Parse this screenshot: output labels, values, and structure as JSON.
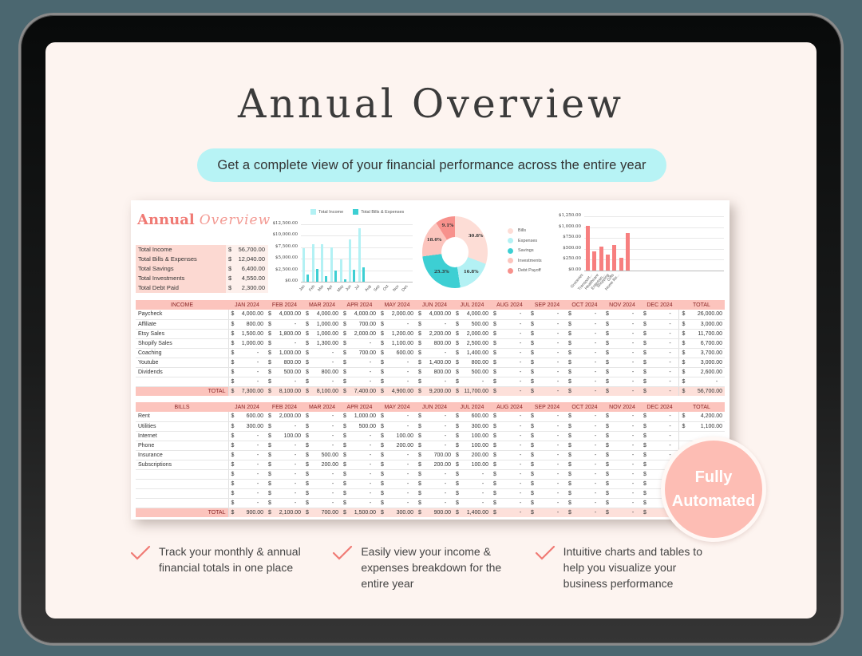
{
  "page": {
    "title": "Annual Overview",
    "subtitle": "Get a complete view of your financial performance across the entire year",
    "badge": {
      "line1": "Fully",
      "line2": "Automated"
    },
    "features": [
      "Track your monthly & annual financial totals in one place",
      "Easily view your income & expenses breakdown for the entire year",
      "Intuitive charts and tables to help you visualize your business performance"
    ]
  },
  "colors": {
    "background": "#4b6770",
    "screen": "#fdf4f0",
    "pill": "#b7f3f5",
    "accent_pink": "#f07a74",
    "header_pink": "#fcc4bd",
    "income_cyan": "#b3f1f4",
    "bills_teal": "#3dcfd3",
    "category_bar": "#f77f7f"
  },
  "sheet": {
    "brand_bold": "Annual",
    "brand_script": "Overview",
    "summary": [
      {
        "label": "Total Income",
        "currency": "$",
        "value": "56,700.00"
      },
      {
        "label": "Total Bills & Expenses",
        "currency": "$",
        "value": "12,040.00"
      },
      {
        "label": "Total Savings",
        "currency": "$",
        "value": "6,400.00"
      },
      {
        "label": "Total Investments",
        "currency": "$",
        "value": "4,550.00"
      },
      {
        "label": "Total Debt Paid",
        "currency": "$",
        "value": "2,300.00"
      }
    ],
    "months": [
      "JAN 2024",
      "FEB 2024",
      "MAR 2024",
      "APR 2024",
      "MAY 2024",
      "JUN 2024",
      "JUL 2024",
      "AUG 2024",
      "SEP 2024",
      "OCT 2024",
      "NOV 2024",
      "DEC 2024"
    ],
    "total_header": "TOTAL",
    "income": {
      "header": "INCOME",
      "rows": [
        {
          "label": "Paycheck",
          "values": [
            "4,000.00",
            "4,000.00",
            "4,000.00",
            "4,000.00",
            "2,000.00",
            "4,000.00",
            "4,000.00",
            "-",
            "-",
            "-",
            "-",
            "-"
          ],
          "total": "26,000.00"
        },
        {
          "label": "Affiliate",
          "values": [
            "800.00",
            "-",
            "1,000.00",
            "700.00",
            "-",
            "-",
            "500.00",
            "-",
            "-",
            "-",
            "-",
            "-"
          ],
          "total": "3,000.00"
        },
        {
          "label": "Etsy Sales",
          "values": [
            "1,500.00",
            "1,800.00",
            "1,000.00",
            "2,000.00",
            "1,200.00",
            "2,200.00",
            "2,000.00",
            "-",
            "-",
            "-",
            "-",
            "-"
          ],
          "total": "11,700.00"
        },
        {
          "label": "Shopify Sales",
          "values": [
            "1,000.00",
            "-",
            "1,300.00",
            "-",
            "1,100.00",
            "800.00",
            "2,500.00",
            "-",
            "-",
            "-",
            "-",
            "-"
          ],
          "total": "6,700.00"
        },
        {
          "label": "Coaching",
          "values": [
            "-",
            "1,000.00",
            "-",
            "700.00",
            "600.00",
            "-",
            "1,400.00",
            "-",
            "-",
            "-",
            "-",
            "-"
          ],
          "total": "3,700.00"
        },
        {
          "label": "Youtube",
          "values": [
            "-",
            "800.00",
            "-",
            "-",
            "-",
            "1,400.00",
            "800.00",
            "-",
            "-",
            "-",
            "-",
            "-"
          ],
          "total": "3,000.00"
        },
        {
          "label": "Dividends",
          "values": [
            "-",
            "500.00",
            "800.00",
            "-",
            "-",
            "800.00",
            "500.00",
            "-",
            "-",
            "-",
            "-",
            "-"
          ],
          "total": "2,600.00"
        },
        {
          "label": "",
          "values": [
            "-",
            "-",
            "-",
            "-",
            "-",
            "-",
            "-",
            "-",
            "-",
            "-",
            "-",
            "-"
          ],
          "total": "-"
        }
      ],
      "total_label": "TOTAL",
      "totals": [
        "7,300.00",
        "8,100.00",
        "8,100.00",
        "7,400.00",
        "4,900.00",
        "9,200.00",
        "11,700.00",
        "-",
        "-",
        "-",
        "-",
        "-"
      ],
      "grand_total": "56,700.00"
    },
    "bills": {
      "header": "BILLS",
      "rows": [
        {
          "label": "Rent",
          "values": [
            "600.00",
            "2,000.00",
            "-",
            "1,000.00",
            "-",
            "-",
            "600.00",
            "-",
            "-",
            "-",
            "-",
            "-"
          ],
          "total": "4,200.00"
        },
        {
          "label": "Utilities",
          "values": [
            "300.00",
            "-",
            "-",
            "500.00",
            "-",
            "-",
            "300.00",
            "-",
            "-",
            "-",
            "-",
            "-"
          ],
          "total": "1,100.00"
        },
        {
          "label": "Internet",
          "values": [
            "-",
            "100.00",
            "-",
            "-",
            "100.00",
            "-",
            "100.00",
            "-",
            "-",
            "-",
            "-",
            "-"
          ],
          "total": ""
        },
        {
          "label": "Phone",
          "values": [
            "-",
            "-",
            "-",
            "-",
            "200.00",
            "-",
            "100.00",
            "-",
            "-",
            "-",
            "-",
            "-"
          ],
          "total": ""
        },
        {
          "label": "Insurance",
          "values": [
            "-",
            "-",
            "500.00",
            "-",
            "-",
            "700.00",
            "200.00",
            "-",
            "-",
            "-",
            "-",
            "-"
          ],
          "total": ""
        },
        {
          "label": "Subscriptions",
          "values": [
            "-",
            "-",
            "200.00",
            "-",
            "-",
            "200.00",
            "100.00",
            "-",
            "-",
            "-",
            "-",
            "-"
          ],
          "total": ""
        },
        {
          "label": "",
          "values": [
            "-",
            "-",
            "-",
            "-",
            "-",
            "-",
            "-",
            "-",
            "-",
            "-",
            "-",
            "-"
          ],
          "total": ""
        },
        {
          "label": "",
          "values": [
            "-",
            "-",
            "-",
            "-",
            "-",
            "-",
            "-",
            "-",
            "-",
            "-",
            "-",
            "-"
          ],
          "total": ""
        },
        {
          "label": "",
          "values": [
            "-",
            "-",
            "-",
            "-",
            "-",
            "-",
            "-",
            "-",
            "-",
            "-",
            "-",
            "-"
          ],
          "total": ""
        },
        {
          "label": "",
          "values": [
            "-",
            "-",
            "-",
            "-",
            "-",
            "-",
            "-",
            "-",
            "-",
            "-",
            "-",
            "-"
          ],
          "total": ""
        }
      ],
      "total_label": "TOTAL",
      "totals": [
        "900.00",
        "2,100.00",
        "700.00",
        "1,500.00",
        "300.00",
        "900.00",
        "1,400.00",
        "-",
        "-",
        "-",
        "-",
        "-"
      ],
      "grand_total": ""
    }
  },
  "chart_data": [
    {
      "type": "bar",
      "title": "",
      "categories": [
        "Jan",
        "Feb",
        "Mar",
        "Apr",
        "May",
        "Jun",
        "Jul",
        "Aug",
        "Sep",
        "Oct",
        "Nov",
        "Dec"
      ],
      "series": [
        {
          "name": "Total Income",
          "color": "#b3f1f4",
          "values": [
            7300,
            8100,
            8100,
            7400,
            4900,
            9200,
            11700,
            0,
            0,
            0,
            0,
            0
          ]
        },
        {
          "name": "Total Bills & Expenses",
          "color": "#3dcfd3",
          "values": [
            1600,
            2800,
            1200,
            2400,
            500,
            2600,
            3200,
            0,
            0,
            0,
            0,
            0
          ]
        }
      ],
      "yticks": [
        "$12,500.00",
        "$10,000.00",
        "$7,500.00",
        "$5,000.00",
        "$2,500.00",
        "$0.00"
      ],
      "ylim": [
        0,
        12500
      ],
      "grid": true,
      "legend_position": "top"
    },
    {
      "type": "pie",
      "donut": true,
      "categories": [
        "Bills",
        "Expenses",
        "Savings",
        "Investments",
        "Debt Payoff"
      ],
      "values": [
        30.8,
        16.8,
        25.3,
        18.0,
        9.1
      ],
      "labels": [
        "30.8%",
        "16.8%",
        "25.3%",
        "18.0%",
        "9.1%"
      ],
      "colors": [
        "#fdddd6",
        "#b3f1f4",
        "#3dcfd3",
        "#fcc4bd",
        "#f7918c"
      ],
      "legend_position": "right"
    },
    {
      "type": "bar",
      "categories": [
        "Groceries",
        "Transport...",
        "Healthcare",
        "Entertain...",
        "Shopping",
        "Home Re...",
        "Gifts"
      ],
      "values": [
        1030,
        440,
        560,
        370,
        590,
        300,
        870
      ],
      "color": "#f77f7f",
      "yticks": [
        "$1,250.00",
        "$1,000.00",
        "$750.00",
        "$500.00",
        "$250.00",
        "$0.00"
      ],
      "ylim": [
        0,
        1250
      ],
      "grid": true
    }
  ]
}
